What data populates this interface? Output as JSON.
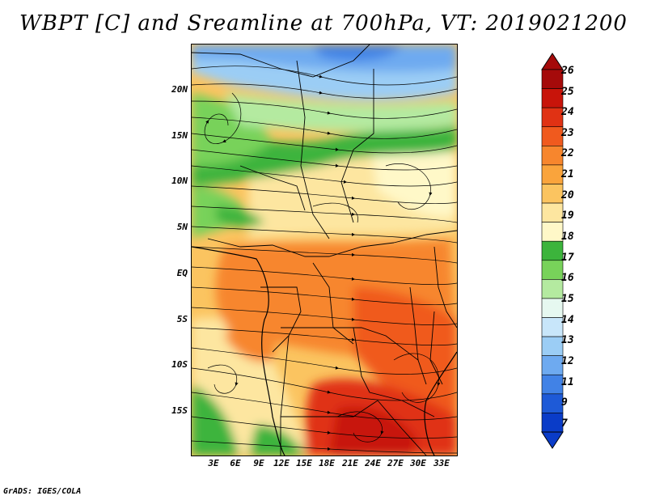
{
  "title": "WBPT [C] and Sreamline at 700hPa, VT: 2019021200",
  "footer": "GrADS: IGES/COLA",
  "lat_labels": [
    "20N",
    "15N",
    "10N",
    "5N",
    "EQ",
    "5S",
    "10S",
    "15S"
  ],
  "lon_labels": [
    "3E",
    "6E",
    "9E",
    "12E",
    "15E",
    "18E",
    "21E",
    "24E",
    "27E",
    "30E",
    "33E"
  ],
  "colorbar": {
    "labels": [
      "26",
      "25",
      "24",
      "23",
      "22",
      "21",
      "20",
      "19",
      "18",
      "17",
      "16",
      "15",
      "14",
      "13",
      "12",
      "11",
      "9",
      "7"
    ],
    "colors": [
      "#a50a0a",
      "#c8140a",
      "#e03214",
      "#f05a1e",
      "#f7862d",
      "#faa43c",
      "#fbc460",
      "#fde6a0",
      "#fff8c8",
      "#3cb43c",
      "#78d25a",
      "#b4eaa0",
      "#e6f8f0",
      "#c8e6fa",
      "#9bcdf5",
      "#6eaaf0",
      "#4182e6",
      "#1e5ad7",
      "#0a3cc8"
    ]
  }
}
